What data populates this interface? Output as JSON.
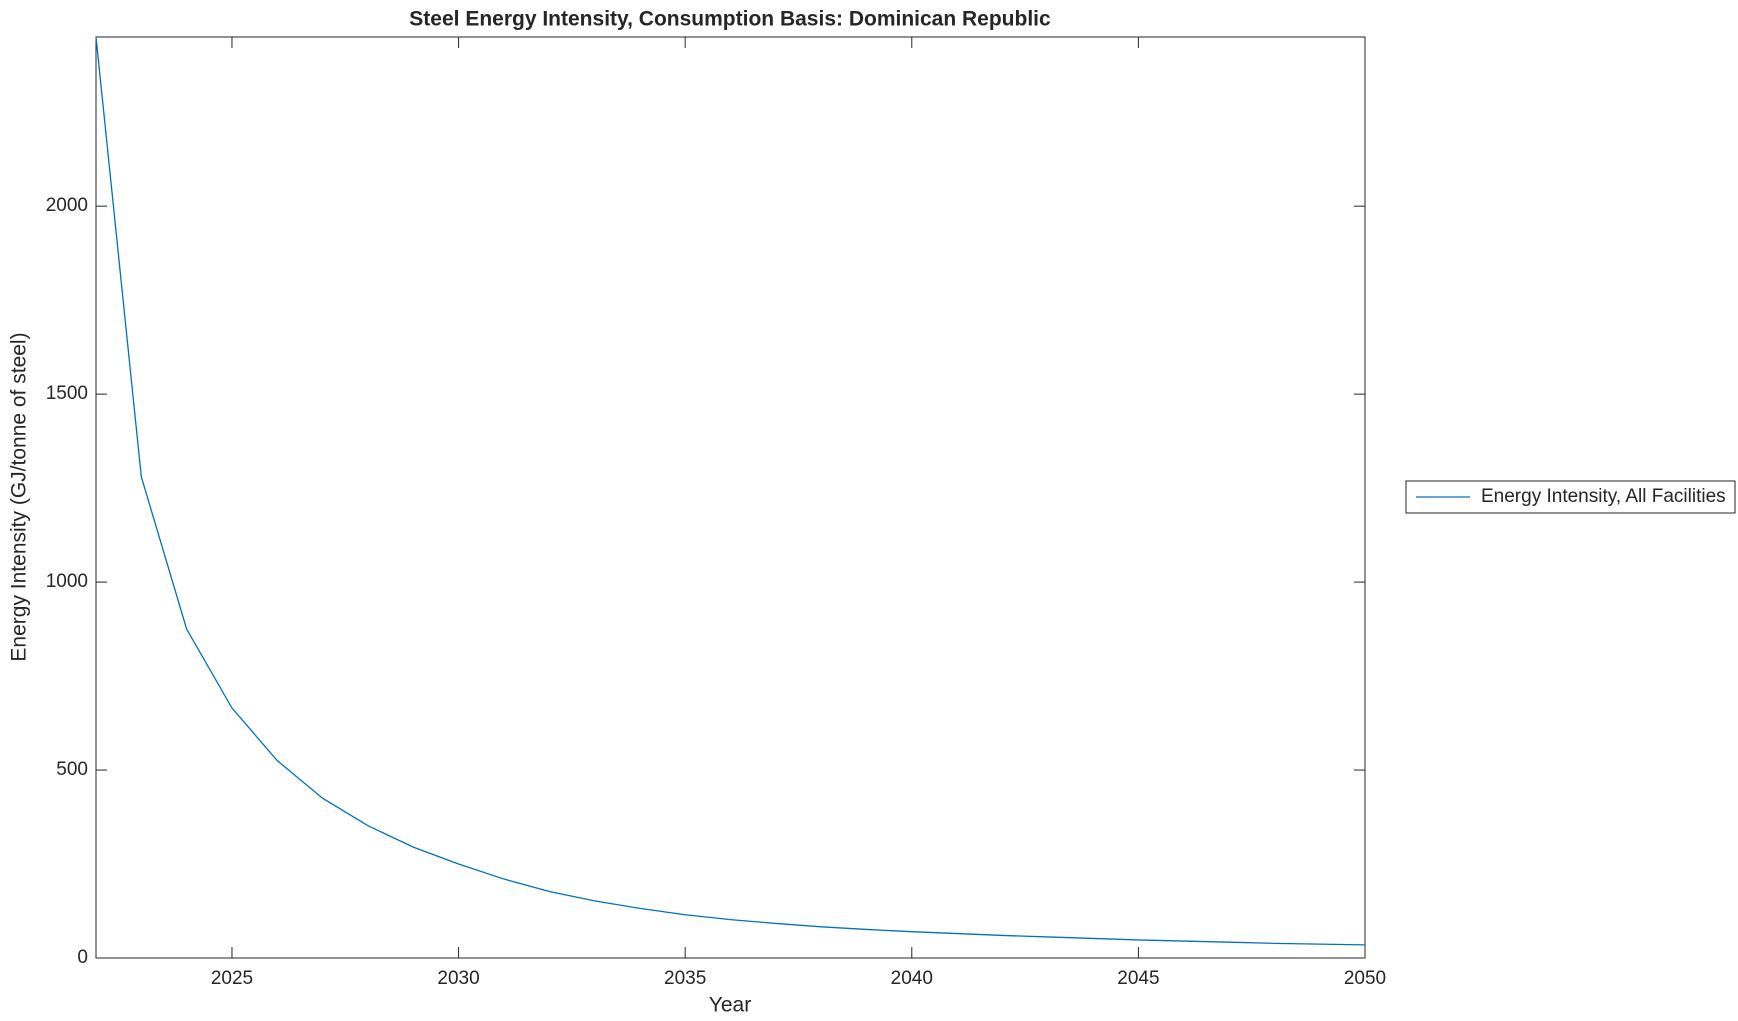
{
  "chart_data": {
    "type": "line",
    "title": "Steel Energy Intensity, Consumption Basis: Dominican Republic",
    "x_label": "Year",
    "y_label": "Energy Intensity (GJ/tonne of steel)",
    "x": [
      2022,
      2023,
      2024,
      2025,
      2026,
      2027,
      2028,
      2029,
      2030,
      2031,
      2032,
      2033,
      2034,
      2035,
      2036,
      2037,
      2038,
      2039,
      2040,
      2041,
      2042,
      2043,
      2044,
      2045,
      2046,
      2047,
      2048,
      2049,
      2050
    ],
    "series": [
      {
        "name": "Energy Intensity, All Facilities",
        "color": "#0072bd",
        "values": [
          2450,
          1280,
          875,
          665,
          525,
          425,
          352,
          295,
          250,
          210,
          177,
          152,
          132,
          115,
          102,
          92,
          83,
          76,
          70,
          65,
          60,
          56,
          52,
          48,
          45,
          42,
          39,
          37,
          35
        ]
      }
    ],
    "xlim": [
      2022,
      2050
    ],
    "xticks": [
      2025,
      2030,
      2035,
      2040,
      2045,
      2050
    ],
    "ylim": [
      0,
      2450
    ],
    "yticks": [
      0,
      500,
      1000,
      1500,
      2000
    ],
    "grid": false,
    "legend": "outside-right"
  }
}
